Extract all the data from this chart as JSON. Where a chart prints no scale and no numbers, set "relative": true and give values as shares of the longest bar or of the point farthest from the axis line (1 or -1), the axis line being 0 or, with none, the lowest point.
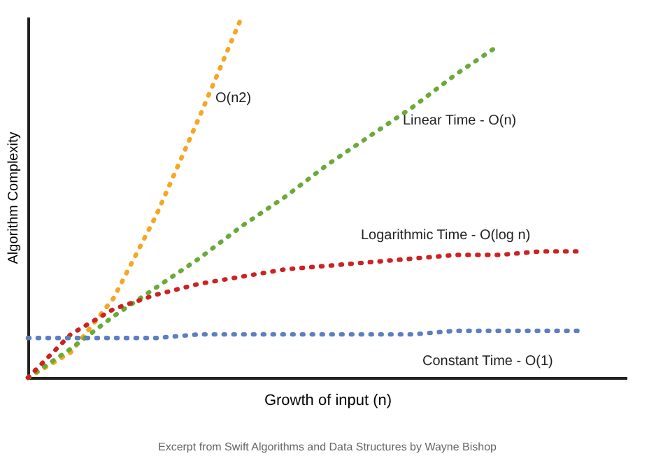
{
  "chart_data": {
    "type": "line",
    "relative": true,
    "xlabel": "Growth of input (n)",
    "ylabel": "Algorithm Complexity",
    "tick_labels": false,
    "grid": false,
    "legend": false,
    "marker": "none",
    "line_style": "dotted",
    "categories": [
      null,
      null,
      null,
      null,
      null,
      null,
      null,
      null,
      null,
      null,
      null,
      null,
      null,
      null
    ],
    "series": [
      {
        "name": "O(n2)",
        "color": "#f5a623",
        "values": [
          0,
          0.07,
          0.22,
          0.45,
          0.72,
          1.0,
          null,
          null,
          null,
          null,
          null,
          null,
          null,
          null
        ]
      },
      {
        "name": "Linear Time - O(n)",
        "color": "#6aaa3a",
        "values": [
          0,
          0.08,
          0.17,
          0.25,
          0.33,
          0.42,
          0.5,
          0.59,
          0.67,
          0.75,
          0.84,
          0.92,
          null,
          null
        ]
      },
      {
        "name": "Logarithmic Time - O(log n)",
        "color": "#cc2222",
        "values": [
          0,
          0.12,
          0.19,
          0.23,
          0.26,
          0.28,
          0.3,
          0.31,
          0.32,
          0.33,
          0.34,
          0.34,
          0.35,
          0.35
        ]
      },
      {
        "name": "Constant Time - O(1)",
        "color": "#5b7fbf",
        "values": [
          0.11,
          0.11,
          0.11,
          0.11,
          0.12,
          0.12,
          0.12,
          0.12,
          0.12,
          0.12,
          0.13,
          0.13,
          0.13,
          0.13
        ]
      }
    ],
    "annotations": [
      "Excerpt from Swift Algorithms and Data Structures by Wayne Bishop"
    ]
  }
}
